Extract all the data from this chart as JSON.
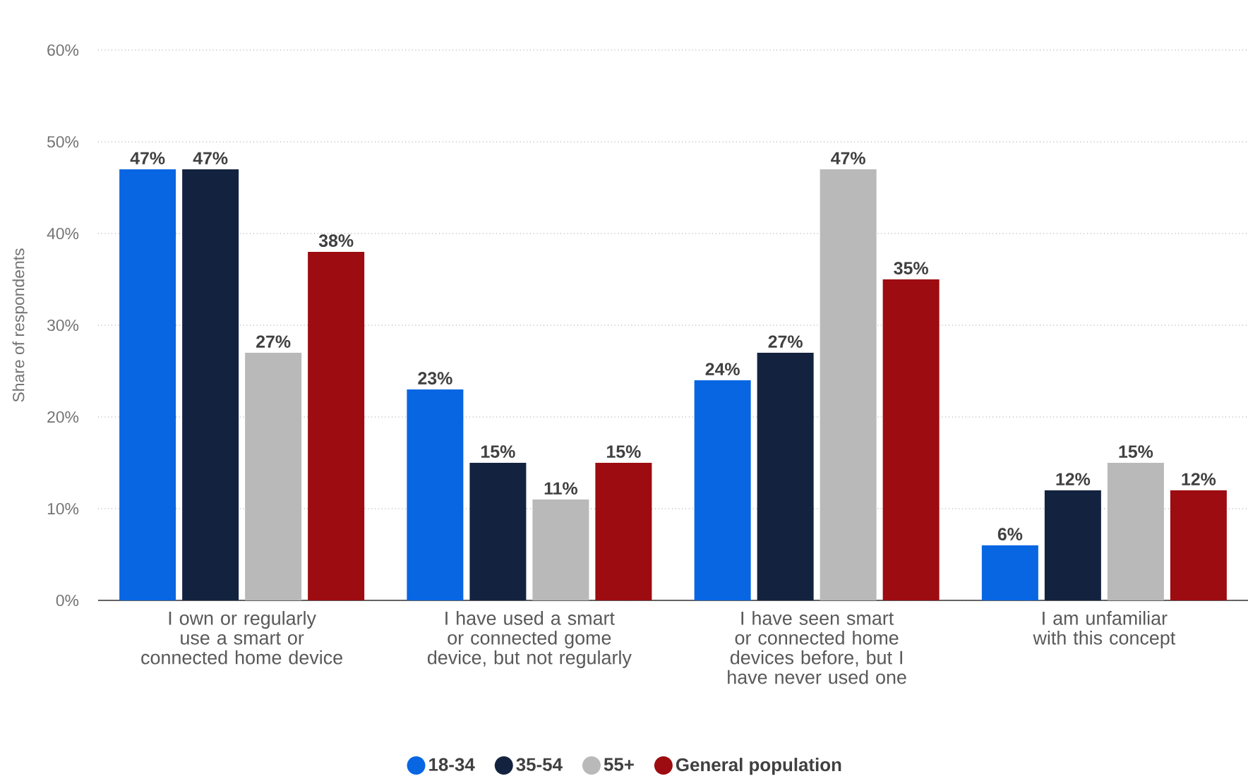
{
  "chart_data": {
    "type": "bar",
    "categories": [
      "I own or regularly use a smart or connected home device",
      "I have used a smart or connected gome device, but not regularly",
      "I have seen smart or connected home devices before, but I have never used one",
      "I am unfamiliar with this concept"
    ],
    "series": [
      {
        "name": "18-34",
        "color": "#0866e2",
        "values": [
          47,
          23,
          24,
          6
        ],
        "value_labels": [
          "47%",
          "23%",
          "24%",
          "6%"
        ]
      },
      {
        "name": "35-54",
        "color": "#13233f",
        "values": [
          47,
          15,
          27,
          12
        ],
        "value_labels": [
          "47%",
          "15%",
          "27%",
          "12%"
        ]
      },
      {
        "name": "55+",
        "color": "#b9b9b9",
        "values": [
          27,
          11,
          47,
          15
        ],
        "value_labels": [
          "27%",
          "11%",
          "47%",
          "15%"
        ]
      },
      {
        "name": "General population",
        "color": "#9c0c10",
        "values": [
          38,
          15,
          35,
          12
        ],
        "value_labels": [
          "38%",
          "15%",
          "35%",
          "12%"
        ]
      }
    ],
    "ylabel": "Share of respondents",
    "ylim": [
      0,
      60
    ],
    "yticks": [
      {
        "value": 0,
        "label": "0%"
      },
      {
        "value": 10,
        "label": "10%"
      },
      {
        "value": 20,
        "label": "20%"
      },
      {
        "value": 30,
        "label": "30%"
      },
      {
        "value": 40,
        "label": "40%"
      },
      {
        "value": 50,
        "label": "50%"
      },
      {
        "value": 60,
        "label": "60%"
      }
    ],
    "grid": "y",
    "legend": "bottom"
  }
}
